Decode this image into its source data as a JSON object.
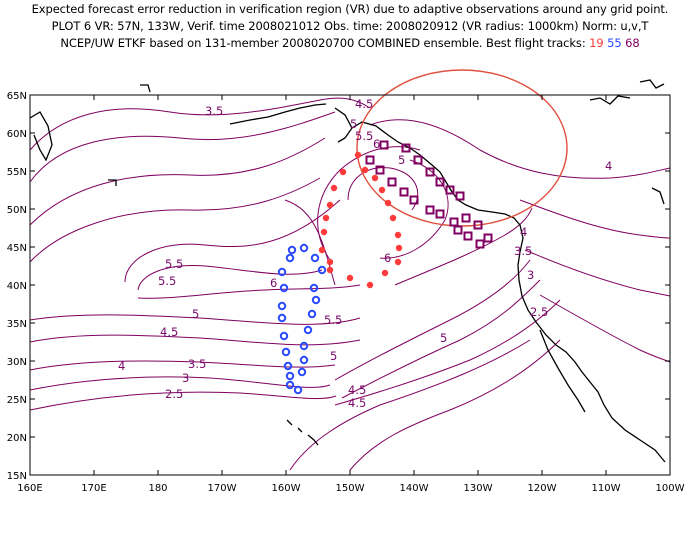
{
  "header": {
    "line1": "Expected forecast error reduction in verification region (VR) due to adaptive observations around any grid point.",
    "line2": "PLOT 6 VR: 57N, 133W, Verif. time 2008021012 Obs. time: 2008020912 (VR radius: 1000km) Norm: u,v,T",
    "line3_prefix": "NCEP/UW ETKF based on 131-member 2008020700 COMBINED ensemble.  Best flight tracks: ",
    "track1": "19",
    "track2": "55",
    "track3": "68"
  },
  "map": {
    "y_labels": [
      "65N",
      "60N",
      "55N",
      "50N",
      "45N",
      "40N",
      "35N",
      "30N",
      "25N",
      "20N",
      "15N"
    ],
    "x_labels": [
      "160E",
      "170E",
      "180",
      "170W",
      "160W",
      "150W",
      "140W",
      "130W",
      "120W",
      "110W",
      "100W"
    ],
    "contour_labels": [
      "3.5",
      "4.5",
      "5",
      "5.5",
      "6",
      "5",
      "4",
      "5.5",
      "5.5",
      "6",
      "5.5",
      "5",
      "4.5",
      "4",
      "3.5",
      "3",
      "2.5",
      "5",
      "4.5",
      "4.5",
      "4",
      "3.5",
      "3",
      "2.5",
      "6",
      "5"
    ],
    "colors": {
      "contour": "#800060",
      "track19": "#ff3a3a",
      "track55": "#2a4bff",
      "track68": "#800060",
      "vr_circle": "#e05040",
      "coast": "#000000"
    }
  }
}
